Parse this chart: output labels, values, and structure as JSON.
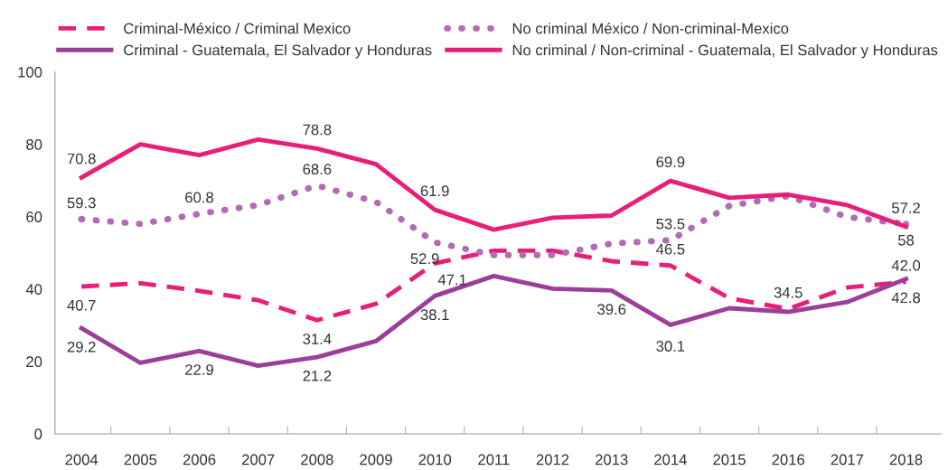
{
  "chart_data": {
    "type": "line",
    "categories": [
      "2004",
      "2005",
      "2006",
      "2007",
      "2008",
      "2009",
      "2010",
      "2011",
      "2012",
      "2013",
      "2014",
      "2015",
      "2016",
      "2017",
      "2018"
    ],
    "series": [
      {
        "name": "Criminal-México / Criminal Mexico",
        "color": "#e91e78",
        "line_style": "dashed",
        "values": [
          40.7,
          41.6,
          39.5,
          36.9,
          31.4,
          35.9,
          47.1,
          50.6,
          50.6,
          47.7,
          46.5,
          37.5,
          34.5,
          40.4,
          42.0
        ],
        "value_labels": [
          "40.7",
          null,
          null,
          null,
          "31.4",
          null,
          "47.1",
          null,
          null,
          null,
          "46.5",
          null,
          "34.5",
          null,
          "42.0"
        ]
      },
      {
        "name": "No criminal México / Non-criminal-Mexico",
        "color": "#b36bb3",
        "line_style": "dotted",
        "values": [
          59.3,
          58.0,
          60.8,
          63.2,
          68.6,
          64.1,
          52.9,
          49.4,
          49.4,
          52.6,
          53.5,
          63.0,
          65.7,
          59.9,
          58
        ],
        "value_labels": [
          "59.3",
          null,
          "60.8",
          null,
          "68.6",
          null,
          "52.9",
          null,
          null,
          null,
          "53.5",
          null,
          null,
          null,
          "58"
        ]
      },
      {
        "name": "Criminal - Guatemala, El Salvador y Honduras",
        "color": "#9b3f9b",
        "line_style": "solid",
        "values": [
          29.2,
          19.6,
          22.9,
          18.8,
          21.2,
          25.6,
          38.1,
          43.6,
          40.1,
          39.6,
          30.1,
          34.7,
          33.7,
          36.4,
          42.8
        ],
        "value_labels": [
          "29.2",
          null,
          "22.9",
          null,
          "21.2",
          null,
          "38.1",
          null,
          null,
          "39.6",
          "30.1",
          null,
          null,
          null,
          "42.8"
        ]
      },
      {
        "name": "No criminal / Non-criminal - Guatemala, El Salvador y Honduras",
        "color": "#e91e78",
        "line_style": "solid",
        "values": [
          70.8,
          80.0,
          77.0,
          81.3,
          78.8,
          74.5,
          61.9,
          56.4,
          59.7,
          60.3,
          69.9,
          65.2,
          66.1,
          63.2,
          57.2
        ],
        "value_labels": [
          "70.8",
          null,
          null,
          null,
          "78.8",
          null,
          "61.9",
          null,
          null,
          null,
          "69.9",
          null,
          null,
          null,
          "57.2"
        ]
      }
    ],
    "ylim": [
      0,
      100
    ],
    "yticks": [
      0,
      20,
      40,
      60,
      80,
      100
    ],
    "grid": false,
    "legend": "top",
    "marker": "none"
  }
}
